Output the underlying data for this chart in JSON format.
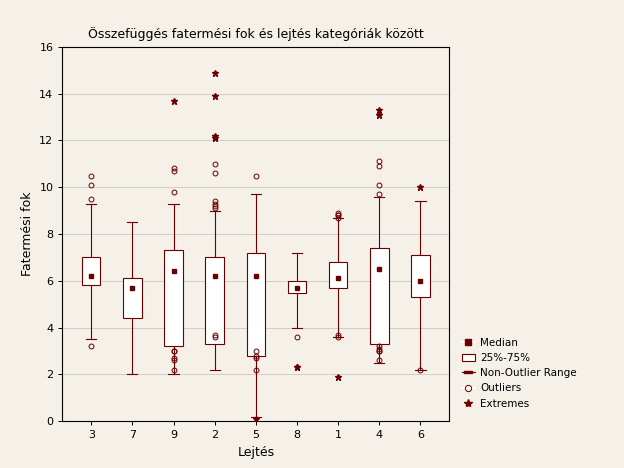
{
  "title": "Összefüggés fatermési fok és lejtés kategóriák között",
  "xlabel": "Lejtés",
  "ylabel": "Fatermési fok",
  "background_color": "#f5f0e8",
  "box_color": "#6b0000",
  "categories": [
    "3",
    "7",
    "9",
    "2",
    "5",
    "8",
    "1",
    "4",
    "6"
  ],
  "ylim": [
    0,
    16
  ],
  "yticks": [
    0,
    2,
    4,
    6,
    8,
    10,
    12,
    14,
    16
  ],
  "boxes": {
    "3": {
      "q1": 5.8,
      "median": 6.2,
      "q3": 7.0,
      "whisker_low": 3.5,
      "whisker_high": 9.3,
      "outliers": [
        3.2,
        9.5,
        10.1,
        10.5
      ],
      "extremes": []
    },
    "7": {
      "q1": 4.4,
      "median": 5.7,
      "q3": 6.1,
      "whisker_low": 2.0,
      "whisker_high": 8.5,
      "outliers": [],
      "extremes": []
    },
    "9": {
      "q1": 3.2,
      "median": 6.4,
      "q3": 7.3,
      "whisker_low": 2.0,
      "whisker_high": 9.3,
      "outliers": [
        2.2,
        2.6,
        2.7,
        3.0,
        3.0,
        9.8,
        10.7,
        10.8
      ],
      "extremes": [
        13.7
      ]
    },
    "2": {
      "q1": 3.3,
      "median": 6.2,
      "q3": 7.0,
      "whisker_low": 2.2,
      "whisker_high": 9.0,
      "outliers": [
        3.6,
        3.7,
        9.1,
        9.2,
        9.3,
        9.4,
        10.6,
        11.0
      ],
      "extremes": [
        12.1,
        12.2,
        13.9,
        14.9
      ]
    },
    "5": {
      "q1": 2.8,
      "median": 6.2,
      "q3": 7.2,
      "whisker_low": 0.2,
      "whisker_high": 9.7,
      "outliers": [
        2.2,
        2.7,
        2.8,
        3.0,
        10.5
      ],
      "extremes": [
        0.1
      ]
    },
    "8": {
      "q1": 5.5,
      "median": 5.7,
      "q3": 6.0,
      "whisker_low": 4.0,
      "whisker_high": 7.2,
      "outliers": [
        3.6
      ],
      "extremes": [
        2.3,
        2.3
      ]
    },
    "1": {
      "q1": 5.7,
      "median": 6.1,
      "q3": 6.8,
      "whisker_low": 3.6,
      "whisker_high": 8.7,
      "outliers": [
        3.6,
        3.7,
        8.7,
        8.8,
        8.8,
        8.9
      ],
      "extremes": [
        1.9
      ]
    },
    "4": {
      "q1": 3.3,
      "median": 6.5,
      "q3": 7.4,
      "whisker_low": 2.5,
      "whisker_high": 9.6,
      "outliers": [
        2.6,
        3.0,
        3.0,
        3.1,
        3.2,
        9.7,
        10.1,
        10.9,
        11.1
      ],
      "extremes": [
        13.1,
        13.3
      ]
    },
    "6": {
      "q1": 5.3,
      "median": 6.0,
      "q3": 7.1,
      "whisker_low": 2.2,
      "whisker_high": 9.4,
      "outliers": [
        2.2
      ],
      "extremes": [
        10.0
      ]
    }
  }
}
